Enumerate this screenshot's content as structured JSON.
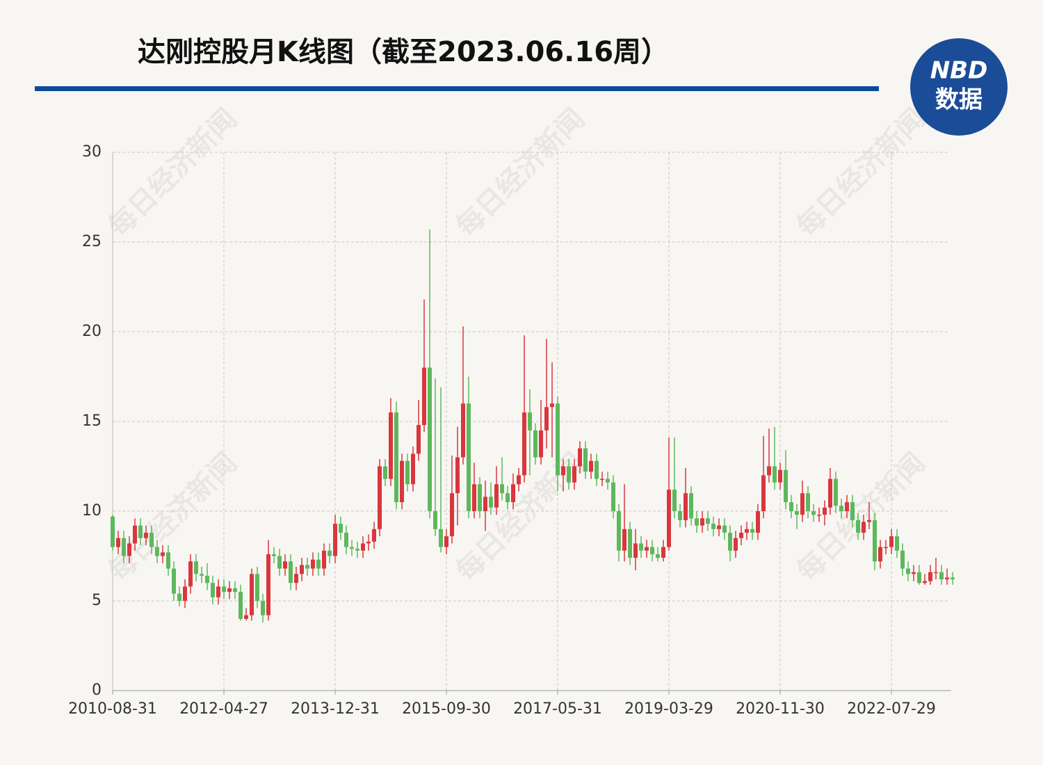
{
  "chart_data": {
    "type": "candlestick",
    "title": "达刚控股月K线图（截至2023.06.16周）",
    "logo": {
      "top": "NBD",
      "bottom": "数据"
    },
    "watermark": "每日经济新闻",
    "categories": [
      "2010-08-31",
      null,
      null,
      null,
      null,
      null,
      null,
      null,
      null,
      null,
      null,
      null,
      null,
      null,
      null,
      null,
      null,
      null,
      null,
      null,
      "2012-04-27",
      null,
      null,
      null,
      null,
      null,
      null,
      null,
      null,
      null,
      null,
      null,
      null,
      null,
      null,
      null,
      null,
      null,
      null,
      null,
      "2013-12-31",
      null,
      null,
      null,
      null,
      null,
      null,
      null,
      null,
      null,
      null,
      null,
      null,
      null,
      null,
      null,
      null,
      null,
      null,
      null,
      "2015-09-30",
      null,
      null,
      null,
      null,
      null,
      null,
      null,
      null,
      null,
      null,
      null,
      null,
      null,
      null,
      null,
      null,
      null,
      null,
      null,
      "2017-05-31",
      null,
      null,
      null,
      null,
      null,
      null,
      null,
      null,
      null,
      null,
      null,
      null,
      null,
      null,
      null,
      null,
      null,
      null,
      null,
      "2019-03-29",
      null,
      null,
      null,
      null,
      null,
      null,
      null,
      null,
      null,
      null,
      null,
      null,
      null,
      null,
      null,
      null,
      null,
      null,
      null,
      "2020-11-30",
      null,
      null,
      null,
      null,
      null,
      null,
      null,
      null,
      null,
      null,
      null,
      null,
      null,
      null,
      null,
      null,
      null,
      null,
      null,
      "2022-07-29",
      null,
      null,
      null,
      null,
      null,
      null,
      null,
      null,
      null,
      null,
      null
    ],
    "open": [
      9.7,
      8.0,
      8.5,
      7.5,
      8.2,
      9.2,
      8.5,
      8.8,
      8.0,
      7.5,
      7.7,
      6.8,
      5.4,
      5.0,
      5.8,
      7.2,
      6.5,
      6.4,
      6.0,
      5.2,
      5.8,
      5.5,
      5.7,
      5.5,
      4.0,
      4.2,
      6.5,
      5.0,
      4.2,
      7.6,
      7.5,
      6.8,
      7.2,
      6.0,
      6.5,
      7.0,
      6.8,
      7.3,
      6.8,
      7.8,
      7.5,
      9.3,
      8.8,
      8.0,
      7.9,
      7.8,
      8.2,
      8.3,
      9.0,
      12.5,
      11.8,
      15.5,
      10.5,
      12.8,
      11.5,
      13.2,
      14.8,
      18.0,
      10.0,
      9.0,
      8.0,
      8.6,
      11.0,
      13.0,
      16.0,
      10.0,
      11.5,
      10.0,
      10.8,
      10.2,
      11.5,
      11.0,
      10.5,
      11.5,
      12.0,
      15.5,
      14.5,
      13.0,
      14.5,
      15.8,
      16.0,
      12.0,
      12.5,
      11.6,
      12.5,
      13.5,
      12.2,
      12.8,
      11.8,
      11.8,
      11.6,
      10.0,
      7.8,
      9.0,
      7.4,
      8.2,
      7.8,
      8.0,
      7.6,
      7.4,
      8.0,
      11.2,
      10.0,
      9.5,
      11.0,
      9.6,
      9.2,
      9.6,
      9.3,
      9.0,
      9.2,
      8.8,
      7.8,
      8.5,
      8.8,
      9.0,
      8.8,
      10.0,
      12.0,
      12.5,
      11.6,
      12.3,
      10.5,
      10.0,
      9.8,
      11.0,
      10.0,
      9.8,
      9.8,
      10.2,
      11.8,
      10.3,
      10.0,
      10.5,
      9.5,
      8.8,
      9.4,
      9.5,
      7.2,
      8.0,
      8.0,
      8.6,
      7.8,
      6.8,
      6.5,
      6.6,
      6.0,
      6.1,
      6.6,
      6.6,
      6.2,
      6.3
    ],
    "high": [
      9.8,
      8.9,
      8.9,
      8.6,
      9.6,
      9.6,
      9.2,
      9.2,
      8.4,
      8.1,
      8.1,
      7.2,
      5.8,
      6.2,
      7.6,
      7.6,
      6.9,
      7.1,
      6.4,
      6.2,
      6.2,
      6.1,
      6.1,
      5.9,
      4.6,
      6.8,
      6.9,
      5.4,
      8.4,
      8.0,
      7.9,
      7.6,
      7.6,
      6.9,
      7.4,
      7.4,
      7.7,
      7.7,
      8.2,
      8.2,
      9.8,
      9.7,
      9.2,
      8.4,
      8.3,
      8.6,
      8.7,
      9.4,
      12.9,
      12.9,
      16.3,
      16.1,
      13.2,
      13.2,
      13.6,
      16.2,
      21.8,
      25.7,
      17.4,
      16.9,
      9.0,
      13.1,
      14.7,
      20.3,
      17.5,
      12.7,
      11.9,
      11.7,
      11.6,
      12.5,
      13.0,
      11.4,
      12.1,
      12.4,
      19.8,
      16.8,
      14.9,
      16.2,
      19.6,
      18.3,
      16.4,
      12.9,
      12.9,
      12.9,
      13.9,
      13.9,
      13.2,
      13.2,
      12.2,
      12.2,
      12.0,
      10.4,
      11.5,
      9.4,
      9.0,
      8.6,
      8.4,
      8.4,
      8.0,
      8.4,
      14.1,
      14.1,
      10.4,
      12.4,
      11.4,
      10.0,
      10.0,
      10.0,
      9.7,
      9.6,
      9.6,
      9.2,
      8.9,
      9.2,
      9.4,
      9.4,
      10.4,
      14.2,
      14.6,
      14.7,
      12.7,
      13.4,
      10.9,
      10.4,
      11.7,
      11.4,
      10.4,
      10.2,
      10.6,
      12.4,
      12.2,
      10.7,
      10.9,
      10.9,
      9.9,
      9.8,
      10.5,
      9.9,
      8.4,
      8.4,
      9.0,
      9.0,
      8.2,
      7.2,
      7.0,
      7.0,
      6.5,
      7.0,
      7.4,
      7.0,
      6.8,
      6.6
    ],
    "low": [
      7.8,
      7.6,
      7.1,
      7.1,
      7.8,
      8.1,
      8.1,
      7.6,
      7.1,
      7.1,
      6.4,
      5.0,
      4.7,
      4.6,
      5.4,
      6.1,
      6.0,
      5.6,
      4.8,
      4.8,
      5.1,
      5.1,
      5.1,
      3.9,
      3.9,
      3.9,
      4.6,
      3.8,
      3.9,
      7.1,
      6.4,
      6.4,
      5.6,
      5.6,
      6.1,
      6.4,
      6.4,
      6.4,
      6.4,
      7.1,
      7.1,
      8.4,
      7.6,
      7.5,
      7.4,
      7.4,
      7.8,
      7.9,
      8.6,
      11.4,
      11.4,
      10.1,
      10.1,
      11.1,
      11.1,
      12.8,
      14.4,
      9.6,
      8.6,
      7.7,
      7.6,
      8.2,
      9.2,
      12.6,
      9.6,
      9.6,
      9.6,
      8.9,
      9.8,
      9.8,
      10.6,
      10.1,
      10.1,
      11.1,
      11.6,
      12.0,
      12.6,
      12.6,
      13.5,
      13.0,
      11.1,
      11.1,
      11.2,
      11.2,
      12.1,
      11.8,
      11.8,
      11.4,
      11.4,
      11.2,
      9.6,
      7.2,
      7.2,
      7.0,
      6.7,
      7.4,
      7.4,
      7.2,
      7.2,
      7.2,
      7.8,
      9.6,
      9.1,
      9.1,
      9.2,
      8.8,
      8.8,
      8.9,
      8.6,
      8.6,
      8.4,
      7.2,
      7.4,
      8.1,
      8.4,
      8.4,
      8.4,
      9.6,
      11.6,
      11.2,
      11.2,
      10.1,
      9.6,
      9.0,
      9.4,
      9.6,
      9.4,
      9.4,
      9.2,
      9.8,
      9.9,
      9.6,
      9.6,
      9.1,
      8.4,
      8.4,
      9.0,
      6.7,
      6.8,
      7.6,
      7.6,
      7.4,
      6.4,
      6.1,
      6.1,
      5.9,
      5.9,
      5.9,
      6.2,
      5.9,
      5.9,
      5.9
    ],
    "close": [
      8.0,
      8.5,
      7.5,
      8.2,
      9.2,
      8.5,
      8.8,
      8.0,
      7.5,
      7.7,
      6.8,
      5.4,
      5.0,
      5.8,
      7.2,
      6.5,
      6.4,
      6.0,
      5.2,
      5.8,
      5.5,
      5.7,
      5.5,
      4.0,
      4.2,
      6.5,
      5.0,
      4.2,
      7.6,
      7.5,
      6.8,
      7.2,
      6.0,
      6.5,
      7.0,
      6.8,
      7.3,
      6.8,
      7.8,
      7.5,
      9.3,
      8.8,
      8.0,
      7.9,
      7.8,
      8.2,
      8.3,
      9.0,
      12.5,
      11.8,
      15.5,
      10.5,
      12.8,
      11.5,
      13.2,
      14.8,
      18.0,
      10.0,
      9.0,
      8.0,
      8.6,
      11.0,
      13.0,
      16.0,
      10.0,
      11.5,
      10.0,
      10.8,
      10.2,
      11.5,
      11.0,
      10.5,
      11.5,
      12.0,
      15.5,
      14.5,
      13.0,
      14.5,
      15.8,
      16.0,
      12.0,
      12.5,
      11.6,
      12.5,
      13.5,
      12.2,
      12.8,
      11.8,
      11.8,
      11.6,
      10.0,
      7.8,
      9.0,
      7.4,
      8.2,
      7.8,
      8.0,
      7.6,
      7.4,
      8.0,
      11.2,
      10.0,
      9.5,
      11.0,
      9.6,
      9.2,
      9.6,
      9.3,
      9.0,
      9.2,
      8.8,
      7.8,
      8.5,
      8.8,
      9.0,
      8.8,
      10.0,
      12.0,
      12.5,
      11.6,
      12.3,
      10.5,
      10.0,
      9.8,
      11.0,
      10.0,
      9.8,
      9.8,
      10.2,
      11.8,
      10.3,
      10.0,
      10.5,
      9.5,
      8.8,
      9.4,
      9.5,
      7.2,
      8.0,
      8.0,
      8.6,
      7.8,
      6.8,
      6.5,
      6.6,
      6.0,
      6.1,
      6.6,
      6.6,
      6.2,
      6.3,
      6.2
    ],
    "up_color": "#d9363e",
    "down_color": "#5cb85c",
    "ylim": [
      0,
      30
    ],
    "yticks": [
      0,
      5,
      10,
      15,
      20,
      25,
      30
    ],
    "grid": true
  }
}
